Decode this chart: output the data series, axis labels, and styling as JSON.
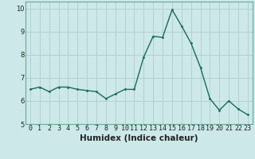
{
  "x": [
    0,
    1,
    2,
    3,
    4,
    5,
    6,
    7,
    8,
    9,
    10,
    11,
    12,
    13,
    14,
    15,
    16,
    17,
    18,
    19,
    20,
    21,
    22,
    23
  ],
  "y": [
    6.5,
    6.6,
    6.4,
    6.6,
    6.6,
    6.5,
    6.45,
    6.4,
    6.1,
    6.3,
    6.5,
    6.5,
    7.9,
    8.8,
    8.75,
    9.95,
    9.25,
    8.5,
    7.45,
    6.1,
    5.6,
    6.0,
    5.65,
    5.4
  ],
  "xlabel": "Humidex (Indice chaleur)",
  "bg_color": "#cce8e8",
  "line_color": "#1a6b5a",
  "marker_color": "#1a6b5a",
  "grid_color": "#b0cccc",
  "xlim": [
    -0.5,
    23.5
  ],
  "ylim": [
    5.0,
    10.3
  ],
  "yticks": [
    5,
    6,
    7,
    8,
    9,
    10
  ],
  "xticks": [
    0,
    1,
    2,
    3,
    4,
    5,
    6,
    7,
    8,
    9,
    10,
    11,
    12,
    13,
    14,
    15,
    16,
    17,
    18,
    19,
    20,
    21,
    22,
    23
  ],
  "font_color": "#222222",
  "tick_fontsize": 6,
  "xlabel_fontsize": 7.5
}
